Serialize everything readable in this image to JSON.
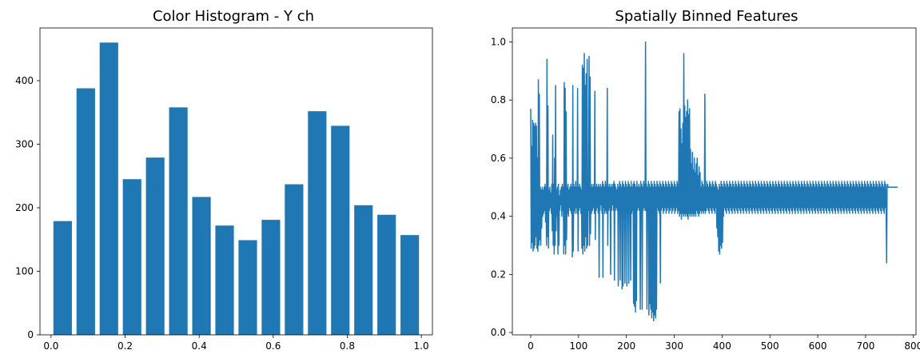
{
  "chart_data": [
    {
      "type": "bar",
      "title": "Color Histogram - Y ch",
      "xlabel": "",
      "ylabel": "",
      "color": "#1f77b4",
      "x": [
        0.03125,
        0.09375,
        0.15625,
        0.21875,
        0.28125,
        0.34375,
        0.40625,
        0.46875,
        0.53125,
        0.59375,
        0.65625,
        0.71875,
        0.78125,
        0.84375,
        0.90625,
        0.96875
      ],
      "values": [
        179,
        388,
        460,
        245,
        279,
        358,
        217,
        172,
        149,
        181,
        237,
        352,
        329,
        204,
        189,
        157
      ],
      "bar_width": 0.05,
      "xlim": [
        -0.03,
        1.03
      ],
      "ylim": [
        0,
        483
      ],
      "xticks": [
        0.0,
        0.2,
        0.4,
        0.6,
        0.8,
        1.0
      ],
      "xtick_labels": [
        "0.0",
        "0.2",
        "0.4",
        "0.6",
        "0.8",
        "1.0"
      ],
      "yticks": [
        0,
        100,
        200,
        300,
        400
      ],
      "ytick_labels": [
        "0",
        "100",
        "200",
        "300",
        "400"
      ],
      "grid": false
    },
    {
      "type": "line",
      "title": "Spatially Binned Features",
      "xlabel": "",
      "ylabel": "",
      "color": "#1f77b4",
      "n_points": 768,
      "x_range": [
        0,
        767
      ],
      "y_range_observed": [
        0.04,
        1.0
      ],
      "series": [
        {
          "values": [
            0.77,
            0.29,
            0.64,
            0.31,
            0.73,
            0.28,
            0.72,
            0.29,
            0.71,
            0.3,
            0.72,
            0.33,
            0.71,
            0.29,
            0.6,
            0.28,
            0.87,
            0.3,
            0.82,
            0.32,
            0.5,
            0.3,
            0.49,
            0.36,
            0.5,
            0.4,
            0.49,
            0.41,
            0.5,
            0.42,
            0.51,
            0.38,
            0.5,
            0.3,
            0.94,
            0.33,
            0.78,
            0.29,
            0.49,
            0.42,
            0.5,
            0.43,
            0.48,
            0.41,
            0.51,
            0.35,
            0.68,
            0.3,
            0.51,
            0.27,
            0.6,
            0.3,
            0.85,
            0.35,
            0.49,
            0.4,
            0.5,
            0.27,
            0.51,
            0.3,
            0.47,
            0.42,
            0.49,
            0.44,
            0.5,
            0.4,
            0.51,
            0.42,
            0.5,
            0.27,
            0.86,
            0.3,
            0.84,
            0.27,
            0.76,
            0.32,
            0.5,
            0.41,
            0.51,
            0.4,
            0.49,
            0.43,
            0.5,
            0.42,
            0.51,
            0.41,
            0.5,
            0.26,
            0.85,
            0.28,
            0.51,
            0.42,
            0.5,
            0.41,
            0.52,
            0.43,
            0.5,
            0.41,
            0.84,
            0.28,
            0.5,
            0.42,
            0.51,
            0.43,
            0.5,
            0.41,
            0.49,
            0.29,
            0.92,
            0.27,
            0.91,
            0.3,
            0.96,
            0.28,
            0.85,
            0.33,
            0.89,
            0.29,
            0.94,
            0.3,
            0.5,
            0.42,
            0.95,
            0.3,
            0.88,
            0.34,
            0.5,
            0.41,
            0.51,
            0.42,
            0.5,
            0.43,
            0.51,
            0.41,
            0.83,
            0.32,
            0.5,
            0.42,
            0.51,
            0.43,
            0.5,
            0.41,
            0.51,
            0.19,
            0.5,
            0.42,
            0.51,
            0.44,
            0.5,
            0.41,
            0.52,
            0.19,
            0.51,
            0.43,
            0.5,
            0.41,
            0.52,
            0.42,
            0.51,
            0.41,
            0.84,
            0.3,
            0.5,
            0.42,
            0.51,
            0.43,
            0.5,
            0.2,
            0.51,
            0.42,
            0.5,
            0.44,
            0.51,
            0.42,
            0.52,
            0.18,
            0.51,
            0.42,
            0.5,
            0.43,
            0.49,
            0.42,
            0.51,
            0.16,
            0.5,
            0.41,
            0.52,
            0.18,
            0.51,
            0.42,
            0.5,
            0.15,
            0.52,
            0.16,
            0.51,
            0.42,
            0.5,
            0.17,
            0.52,
            0.41,
            0.51,
            0.16,
            0.5,
            0.42,
            0.52,
            0.17,
            0.51,
            0.42,
            0.5,
            0.18,
            0.52,
            0.41,
            0.5,
            0.42,
            0.51,
            0.1,
            0.52,
            0.09,
            0.51,
            0.07,
            0.5,
            0.11,
            0.52,
            0.42,
            0.5,
            0.43,
            0.51,
            0.42,
            0.5,
            0.08,
            0.52,
            0.41,
            0.51,
            0.08,
            0.5,
            0.42,
            0.52,
            0.43,
            0.51,
            0.42,
            1.0,
            0.42,
            0.51,
            0.08,
            0.5,
            0.43,
            0.52,
            0.06,
            0.51,
            0.1,
            0.5,
            0.08,
            0.52,
            0.05,
            0.51,
            0.07,
            0.5,
            0.04,
            0.52,
            0.06,
            0.51,
            0.05,
            0.5,
            0.08,
            0.52,
            0.43,
            0.51,
            0.42,
            0.5,
            0.41,
            0.52,
            0.17,
            0.51,
            0.42,
            0.5,
            0.43,
            0.52,
            0.41,
            0.51,
            0.42,
            0.5,
            0.43,
            0.52,
            0.41,
            0.51,
            0.42,
            0.5,
            0.43,
            0.52,
            0.41,
            0.51,
            0.42,
            0.5,
            0.43,
            0.52,
            0.41,
            0.51,
            0.42,
            0.5,
            0.43,
            0.52,
            0.41,
            0.51,
            0.42,
            0.5,
            0.43,
            0.52,
            0.41,
            0.51,
            0.42,
            0.76,
            0.4,
            0.77,
            0.41,
            0.7,
            0.39,
            0.65,
            0.41,
            0.72,
            0.4,
            0.96,
            0.41,
            0.78,
            0.4,
            0.74,
            0.41,
            0.76,
            0.4,
            0.8,
            0.39,
            0.75,
            0.41,
            0.77,
            0.4,
            0.63,
            0.41,
            0.58,
            0.4,
            0.62,
            0.41,
            0.56,
            0.4,
            0.6,
            0.41,
            0.55,
            0.4,
            0.58,
            0.42,
            0.6,
            0.41,
            0.54,
            0.4,
            0.57,
            0.41,
            0.55,
            0.42,
            0.5,
            0.41,
            0.52,
            0.42,
            0.51,
            0.41,
            0.5,
            0.42,
            0.82,
            0.41,
            0.5,
            0.42,
            0.52,
            0.43,
            0.51,
            0.42,
            0.5,
            0.41,
            0.52,
            0.43,
            0.51,
            0.42,
            0.5,
            0.41,
            0.52,
            0.43,
            0.51,
            0.42,
            0.5,
            0.41,
            0.52,
            0.43,
            0.51,
            0.36,
            0.5,
            0.33,
            0.49,
            0.28,
            0.51,
            0.27,
            0.5,
            0.3,
            0.52,
            0.29,
            0.51,
            0.31,
            0.5,
            0.4,
            0.52,
            0.43,
            0.51,
            0.42,
            0.5,
            0.41,
            0.52,
            0.43,
            0.51,
            0.42,
            0.5,
            0.41,
            0.52,
            0.43,
            0.51,
            0.42,
            0.5,
            0.41,
            0.52,
            0.43,
            0.51,
            0.42,
            0.5,
            0.41,
            0.52,
            0.43,
            0.51,
            0.42,
            0.5,
            0.41,
            0.52,
            0.43,
            0.51,
            0.42,
            0.5,
            0.41,
            0.52,
            0.43,
            0.51,
            0.42,
            0.5,
            0.41,
            0.52,
            0.43,
            0.51,
            0.42,
            0.5,
            0.41,
            0.52,
            0.43,
            0.51,
            0.42,
            0.5,
            0.41,
            0.52,
            0.43,
            0.51,
            0.42,
            0.5,
            0.41,
            0.52,
            0.43,
            0.51,
            0.42,
            0.5,
            0.41,
            0.52,
            0.43,
            0.51,
            0.42,
            0.5,
            0.41,
            0.52,
            0.43,
            0.51,
            0.42,
            0.5,
            0.41,
            0.52,
            0.43,
            0.51,
            0.42,
            0.5,
            0.41,
            0.52,
            0.43,
            0.51,
            0.42,
            0.5,
            0.41,
            0.52,
            0.43,
            0.51,
            0.42,
            0.5,
            0.41,
            0.52,
            0.43,
            0.51,
            0.42,
            0.5,
            0.41,
            0.52,
            0.43,
            0.51,
            0.42,
            0.5,
            0.41,
            0.52,
            0.43,
            0.51,
            0.42,
            0.5,
            0.41,
            0.52,
            0.43,
            0.51,
            0.42,
            0.5,
            0.41,
            0.52,
            0.43,
            0.51,
            0.42,
            0.5,
            0.41,
            0.52,
            0.43,
            0.51,
            0.42,
            0.5,
            0.41,
            0.52,
            0.43,
            0.51,
            0.42,
            0.5,
            0.41,
            0.52,
            0.43,
            0.51,
            0.42,
            0.5,
            0.41,
            0.52,
            0.43,
            0.51,
            0.42,
            0.5,
            0.41,
            0.52,
            0.43,
            0.51,
            0.42,
            0.5,
            0.41,
            0.52,
            0.43,
            0.51,
            0.42,
            0.5,
            0.41,
            0.52,
            0.43,
            0.51,
            0.42,
            0.5,
            0.41,
            0.52,
            0.43,
            0.51,
            0.42,
            0.5,
            0.41,
            0.52,
            0.43,
            0.51,
            0.42,
            0.5,
            0.41,
            0.52,
            0.43,
            0.51,
            0.42,
            0.5,
            0.41,
            0.52,
            0.43,
            0.51,
            0.42,
            0.5,
            0.41,
            0.52,
            0.43,
            0.51,
            0.42,
            0.5,
            0.41,
            0.52,
            0.43,
            0.51,
            0.42,
            0.5,
            0.41,
            0.52,
            0.43,
            0.51,
            0.42,
            0.5,
            0.41,
            0.52,
            0.43,
            0.51,
            0.42,
            0.5,
            0.41,
            0.52,
            0.43,
            0.51,
            0.42,
            0.5,
            0.41,
            0.52,
            0.43,
            0.51,
            0.42,
            0.5,
            0.41,
            0.52,
            0.43,
            0.51,
            0.42,
            0.5,
            0.41,
            0.52,
            0.43,
            0.51,
            0.42,
            0.5,
            0.41,
            0.52,
            0.43,
            0.51,
            0.42,
            0.5,
            0.41,
            0.52,
            0.43,
            0.51,
            0.42,
            0.5,
            0.41,
            0.52,
            0.43,
            0.51,
            0.42,
            0.5,
            0.41,
            0.52,
            0.43,
            0.51,
            0.42,
            0.5,
            0.41,
            0.52,
            0.43,
            0.51,
            0.42,
            0.5,
            0.41,
            0.52,
            0.43,
            0.51,
            0.42,
            0.5,
            0.41,
            0.52,
            0.43,
            0.51,
            0.42,
            0.5,
            0.41,
            0.52,
            0.43,
            0.51,
            0.42,
            0.5,
            0.41,
            0.52,
            0.43,
            0.51,
            0.42,
            0.5,
            0.41,
            0.52,
            0.43,
            0.51,
            0.42,
            0.5,
            0.41,
            0.52,
            0.43,
            0.51,
            0.42,
            0.5,
            0.41,
            0.52,
            0.43,
            0.51,
            0.42,
            0.5,
            0.41,
            0.52,
            0.43,
            0.51,
            0.42,
            0.5,
            0.41,
            0.52,
            0.43,
            0.51,
            0.42,
            0.5,
            0.41,
            0.52,
            0.43,
            0.51,
            0.42,
            0.5,
            0.41,
            0.52,
            0.43,
            0.51,
            0.42,
            0.5,
            0.41,
            0.52,
            0.43,
            0.51,
            0.42,
            0.24,
            0.5,
            0.51,
            0.5
          ]
        }
      ],
      "xlim": [
        -38.4,
        805.4
      ],
      "ylim": [
        -0.008,
        1.048
      ],
      "xticks": [
        0,
        100,
        200,
        300,
        400,
        500,
        600,
        700,
        800
      ],
      "xtick_labels": [
        "0",
        "100",
        "200",
        "300",
        "400",
        "500",
        "600",
        "700",
        "800"
      ],
      "yticks": [
        0.0,
        0.2,
        0.4,
        0.6,
        0.8,
        1.0
      ],
      "ytick_labels": [
        "0.0",
        "0.2",
        "0.4",
        "0.6",
        "0.8",
        "1.0"
      ],
      "grid": false
    }
  ]
}
